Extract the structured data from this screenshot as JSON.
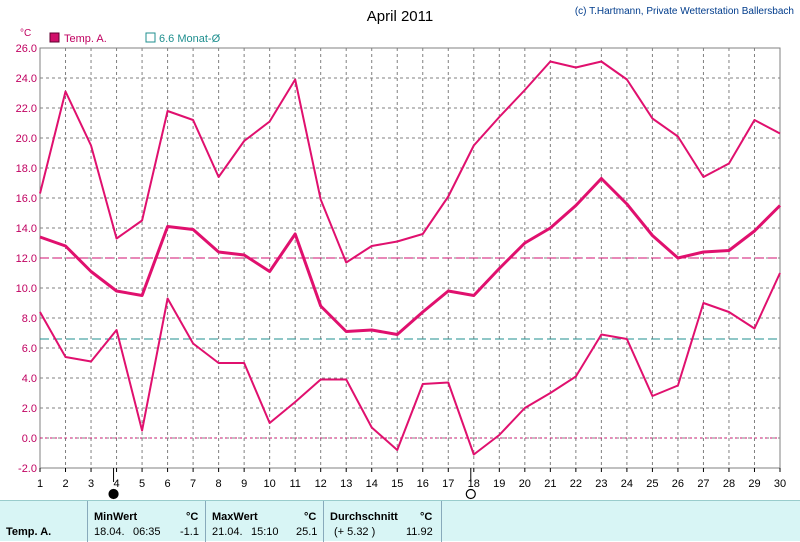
{
  "chart_data": {
    "type": "line",
    "title": "April 2011",
    "credit": "(c) T.Hartmann, Private Wetterstation Ballersbach",
    "ylabel": "°C",
    "ylim": [
      -2.0,
      26.0
    ],
    "yticks": [
      "-2.0",
      "0.0",
      "2.0",
      "4.0",
      "6.0",
      "8.0",
      "10.0",
      "12.0",
      "14.0",
      "16.0",
      "18.0",
      "20.0",
      "22.0",
      "24.0",
      "26.0"
    ],
    "x": [
      1,
      2,
      3,
      4,
      5,
      6,
      7,
      8,
      9,
      10,
      11,
      12,
      13,
      14,
      15,
      16,
      17,
      18,
      19,
      20,
      21,
      22,
      23,
      24,
      25,
      26,
      27,
      28,
      29,
      30
    ],
    "legend": {
      "placement": "top-left",
      "temp_label": "Temp. A.",
      "avg_label": "6.6 Monat-Ø"
    },
    "series": [
      {
        "role": "max",
        "values": [
          16.3,
          23.1,
          19.5,
          13.3,
          14.5,
          21.8,
          21.2,
          17.4,
          19.8,
          21.1,
          23.9,
          15.9,
          11.7,
          12.8,
          13.1,
          13.6,
          16.1,
          19.5,
          21.4,
          23.2,
          25.1,
          24.7,
          25.1,
          23.9,
          21.3,
          20.1,
          17.4,
          18.3,
          21.2,
          20.3
        ]
      },
      {
        "role": "mean",
        "values": [
          13.4,
          12.8,
          11.1,
          9.8,
          9.5,
          14.1,
          13.9,
          12.4,
          12.2,
          11.1,
          13.6,
          8.8,
          7.1,
          7.2,
          6.9,
          8.4,
          9.8,
          9.5,
          11.3,
          13.0,
          14.0,
          15.5,
          17.3,
          15.6,
          13.5,
          12.0,
          12.4,
          12.5,
          13.8,
          15.5
        ]
      },
      {
        "role": "min",
        "values": [
          8.4,
          5.4,
          5.1,
          7.2,
          0.5,
          9.3,
          6.3,
          5.0,
          5.0,
          1.0,
          2.4,
          3.9,
          3.9,
          0.7,
          -0.8,
          3.6,
          3.7,
          -1.1,
          0.2,
          2.0,
          3.0,
          4.1,
          6.9,
          6.6,
          2.8,
          3.5,
          9.0,
          8.4,
          7.3,
          11.0
        ]
      }
    ],
    "reference_lines": [
      {
        "value": 12.0,
        "color": "#d01070"
      },
      {
        "value": 6.6,
        "color": "#1f8f8f"
      },
      {
        "value": 0.0,
        "color": "#d01070"
      }
    ],
    "moon": {
      "new": 4,
      "full": 18
    },
    "colors": {
      "series": "#e0106e",
      "grid": "#808080",
      "avg": "#1f8f8f"
    }
  },
  "stats": {
    "row_label": "Temp. A.",
    "min": {
      "title": "MinWert",
      "unit": "°C",
      "date": "18.04.",
      "time": "06:35",
      "value": "-1.1"
    },
    "max": {
      "title": "MaxWert",
      "unit": "°C",
      "date": "21.04.",
      "time": "15:10",
      "value": "25.1"
    },
    "avg": {
      "title": "Durchschnitt",
      "unit": "°C",
      "delta": "(+ 5.32 )",
      "value": "11.92"
    }
  }
}
